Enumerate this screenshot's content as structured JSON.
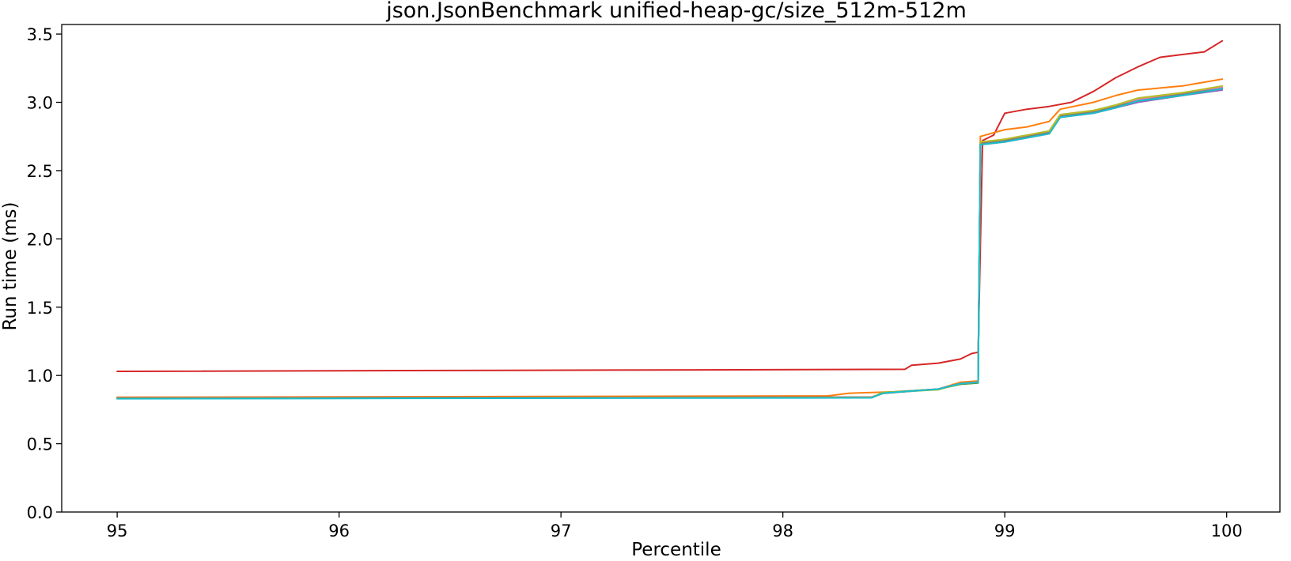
{
  "chart_data": {
    "type": "line",
    "title": "json.JsonBenchmark unified-heap-gc/size_512m-512m",
    "xlabel": "Percentile",
    "ylabel": "Run time (ms)",
    "xlim": [
      94.75,
      100.24
    ],
    "ylim": [
      0.0,
      3.57
    ],
    "xticks": [
      "95",
      "96",
      "97",
      "98",
      "99",
      "100"
    ],
    "yticks": [
      "0.0",
      "0.5",
      "1.0",
      "1.5",
      "2.0",
      "2.5",
      "3.0",
      "3.5"
    ],
    "grid": false,
    "legend": "none",
    "series": [
      {
        "color": "#d62728",
        "points": [
          [
            95,
            1.03
          ],
          [
            98.55,
            1.045
          ],
          [
            98.58,
            1.075
          ],
          [
            98.7,
            1.09
          ],
          [
            98.8,
            1.12
          ],
          [
            98.85,
            1.16
          ],
          [
            98.88,
            1.17
          ],
          [
            98.9,
            2.72
          ],
          [
            98.95,
            2.76
          ],
          [
            99.0,
            2.92
          ],
          [
            99.1,
            2.95
          ],
          [
            99.2,
            2.97
          ],
          [
            99.3,
            3.0
          ],
          [
            99.4,
            3.08
          ],
          [
            99.5,
            3.18
          ],
          [
            99.6,
            3.26
          ],
          [
            99.7,
            3.33
          ],
          [
            99.8,
            3.35
          ],
          [
            99.9,
            3.37
          ],
          [
            99.98,
            3.45
          ]
        ]
      },
      {
        "color": "#ff7f0e",
        "points": [
          [
            95,
            0.84
          ],
          [
            98.2,
            0.85
          ],
          [
            98.3,
            0.87
          ],
          [
            98.5,
            0.88
          ],
          [
            98.7,
            0.9
          ],
          [
            98.8,
            0.95
          ],
          [
            98.88,
            0.96
          ],
          [
            98.89,
            2.75
          ],
          [
            99.0,
            2.8
          ],
          [
            99.1,
            2.82
          ],
          [
            99.2,
            2.86
          ],
          [
            99.25,
            2.95
          ],
          [
            99.4,
            3.0
          ],
          [
            99.5,
            3.05
          ],
          [
            99.6,
            3.09
          ],
          [
            99.8,
            3.12
          ],
          [
            99.98,
            3.17
          ]
        ]
      },
      {
        "color": "#1f77b4",
        "points": [
          [
            95,
            0.835
          ],
          [
            98.4,
            0.84
          ],
          [
            98.45,
            0.87
          ],
          [
            98.7,
            0.9
          ],
          [
            98.8,
            0.94
          ],
          [
            98.88,
            0.95
          ],
          [
            98.89,
            2.7
          ],
          [
            99.0,
            2.72
          ],
          [
            99.2,
            2.78
          ],
          [
            99.25,
            2.9
          ],
          [
            99.4,
            2.93
          ],
          [
            99.5,
            2.97
          ],
          [
            99.6,
            3.02
          ],
          [
            99.8,
            3.06
          ],
          [
            99.98,
            3.1
          ]
        ]
      },
      {
        "color": "#2ca02c",
        "points": [
          [
            95,
            0.832
          ],
          [
            98.4,
            0.838
          ],
          [
            98.45,
            0.875
          ],
          [
            98.7,
            0.9
          ],
          [
            98.8,
            0.935
          ],
          [
            98.88,
            0.945
          ],
          [
            98.89,
            2.7
          ],
          [
            99.0,
            2.73
          ],
          [
            99.2,
            2.79
          ],
          [
            99.25,
            2.91
          ],
          [
            99.4,
            2.94
          ],
          [
            99.5,
            2.98
          ],
          [
            99.6,
            3.03
          ],
          [
            99.8,
            3.07
          ],
          [
            99.98,
            3.11
          ]
        ]
      },
      {
        "color": "#9467bd",
        "points": [
          [
            95,
            0.835
          ],
          [
            98.4,
            0.84
          ],
          [
            98.45,
            0.87
          ],
          [
            98.7,
            0.9
          ],
          [
            98.8,
            0.94
          ],
          [
            98.88,
            0.95
          ],
          [
            98.89,
            2.71
          ],
          [
            99.0,
            2.72
          ],
          [
            99.2,
            2.78
          ],
          [
            99.25,
            2.9
          ],
          [
            99.4,
            2.92
          ],
          [
            99.5,
            2.96
          ],
          [
            99.6,
            3.0
          ],
          [
            99.8,
            3.05
          ],
          [
            99.98,
            3.09
          ]
        ]
      },
      {
        "color": "#8c564b",
        "points": [
          [
            95,
            0.836
          ],
          [
            98.4,
            0.842
          ],
          [
            98.45,
            0.872
          ],
          [
            98.7,
            0.9
          ],
          [
            98.8,
            0.94
          ],
          [
            98.88,
            0.95
          ],
          [
            98.89,
            2.69
          ],
          [
            99.0,
            2.71
          ],
          [
            99.2,
            2.77
          ],
          [
            99.25,
            2.89
          ],
          [
            99.4,
            2.92
          ],
          [
            99.5,
            2.96
          ],
          [
            99.6,
            3.01
          ],
          [
            99.8,
            3.05
          ],
          [
            99.98,
            3.1
          ]
        ]
      },
      {
        "color": "#e377c2",
        "points": [
          [
            95,
            0.834
          ],
          [
            98.4,
            0.84
          ],
          [
            98.45,
            0.87
          ],
          [
            98.7,
            0.9
          ],
          [
            98.8,
            0.94
          ],
          [
            98.88,
            0.95
          ],
          [
            98.89,
            2.7
          ],
          [
            99.0,
            2.73
          ],
          [
            99.2,
            2.78
          ],
          [
            99.25,
            2.9
          ],
          [
            99.4,
            2.94
          ],
          [
            99.5,
            2.97
          ],
          [
            99.6,
            3.02
          ],
          [
            99.8,
            3.06
          ],
          [
            99.98,
            3.11
          ]
        ]
      },
      {
        "color": "#7f7f7f",
        "points": [
          [
            95,
            0.833
          ],
          [
            98.4,
            0.839
          ],
          [
            98.45,
            0.868
          ],
          [
            98.7,
            0.9
          ],
          [
            98.8,
            0.938
          ],
          [
            98.88,
            0.948
          ],
          [
            98.89,
            2.7
          ],
          [
            99.0,
            2.72
          ],
          [
            99.2,
            2.78
          ],
          [
            99.25,
            2.9
          ],
          [
            99.4,
            2.93
          ],
          [
            99.5,
            2.97
          ],
          [
            99.6,
            3.01
          ],
          [
            99.8,
            3.06
          ],
          [
            99.98,
            3.1
          ]
        ]
      },
      {
        "color": "#bcbd22",
        "points": [
          [
            95,
            0.832
          ],
          [
            98.4,
            0.838
          ],
          [
            98.45,
            0.875
          ],
          [
            98.7,
            0.895
          ],
          [
            98.8,
            0.94
          ],
          [
            98.88,
            0.95
          ],
          [
            98.89,
            2.71
          ],
          [
            99.0,
            2.73
          ],
          [
            99.2,
            2.79
          ],
          [
            99.25,
            2.91
          ],
          [
            99.4,
            2.94
          ],
          [
            99.5,
            2.98
          ],
          [
            99.6,
            3.03
          ],
          [
            99.8,
            3.07
          ],
          [
            99.98,
            3.12
          ]
        ]
      },
      {
        "color": "#17becf",
        "points": [
          [
            95,
            0.83
          ],
          [
            98.4,
            0.836
          ],
          [
            98.45,
            0.87
          ],
          [
            98.7,
            0.9
          ],
          [
            98.8,
            0.94
          ],
          [
            98.88,
            0.95
          ],
          [
            98.89,
            2.69
          ],
          [
            99.0,
            2.71
          ],
          [
            99.2,
            2.77
          ],
          [
            99.25,
            2.89
          ],
          [
            99.4,
            2.92
          ],
          [
            99.5,
            2.96
          ],
          [
            99.6,
            3.01
          ],
          [
            99.8,
            3.05
          ],
          [
            99.98,
            3.1
          ]
        ]
      }
    ]
  }
}
